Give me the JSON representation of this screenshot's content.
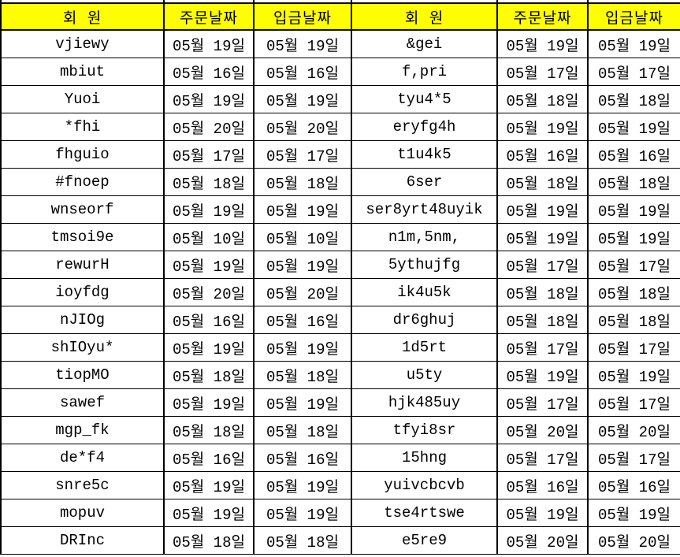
{
  "table": {
    "headers": [
      "회 원",
      "주문날짜",
      "입금날짜",
      "회 원",
      "주문날짜",
      "입금날짜"
    ],
    "column_roles": [
      "member",
      "order-date",
      "deposit-date",
      "member",
      "order-date",
      "deposit-date"
    ],
    "rows": [
      [
        "vjiewy",
        "05월 19일",
        "05월 19일",
        "&gei",
        "05월 19일",
        "05월 19일"
      ],
      [
        "mbiut",
        "05월 16일",
        "05월 16일",
        "f,pri",
        "05월 17일",
        "05월 17일"
      ],
      [
        "Yuoi",
        "05월 19일",
        "05월 19일",
        "tyu4*5",
        "05월 18일",
        "05월 18일"
      ],
      [
        "*fhi",
        "05월 20일",
        "05월 20일",
        "eryfg4h",
        "05월 19일",
        "05월 19일"
      ],
      [
        "fhguio",
        "05월 17일",
        "05월 17일",
        "t1u4k5",
        "05월 16일",
        "05월 16일"
      ],
      [
        "#fnoep",
        "05월 18일",
        "05월 18일",
        "6ser",
        "05월 18일",
        "05월 18일"
      ],
      [
        "wnseorf",
        "05월 19일",
        "05월 19일",
        "ser8yrt48uyik",
        "05월 19일",
        "05월 19일"
      ],
      [
        "tmsoi9e",
        "05월 10일",
        "05월 10일",
        "n1m,5nm,",
        "05월 19일",
        "05월 19일"
      ],
      [
        "rewurH",
        "05월 19일",
        "05월 19일",
        "5ythujfg",
        "05월 17일",
        "05월 17일"
      ],
      [
        "ioyfdg",
        "05월 20일",
        "05월 20일",
        "ik4u5k",
        "05월 18일",
        "05월 18일"
      ],
      [
        "nJIOg",
        "05월 16일",
        "05월 16일",
        "dr6ghuj",
        "05월 18일",
        "05월 18일"
      ],
      [
        "shIOyu*",
        "05월 19일",
        "05월 19일",
        "1d5rt",
        "05월 17일",
        "05월 17일"
      ],
      [
        "tiopMO",
        "05월 18일",
        "05월 18일",
        "u5ty",
        "05월 19일",
        "05월 19일"
      ],
      [
        "sawef",
        "05월 19일",
        "05월 19일",
        "hjk485uy",
        "05월 17일",
        "05월 17일"
      ],
      [
        "mgp_fk",
        "05월 18일",
        "05월 18일",
        "tfyi8sr",
        "05월 20일",
        "05월 20일"
      ],
      [
        "de*f4",
        "05월 16일",
        "05월 16일",
        "15hng",
        "05월 17일",
        "05월 17일"
      ],
      [
        "snre5c",
        "05월 19일",
        "05월 19일",
        "yuivcbcvb",
        "05월 16일",
        "05월 16일"
      ],
      [
        "mopuv",
        "05월 19일",
        "05월 19일",
        "tse4rtswe",
        "05월 19일",
        "05월 19일"
      ],
      [
        "DRInc",
        "05월 18일",
        "05월 18일",
        "e5re9",
        "05월 20일",
        "05월 20일"
      ]
    ]
  },
  "colors": {
    "header_bg": "#ffff00",
    "grid_border": "#000000",
    "cell_bg": "#ffffff",
    "text": "#000000"
  }
}
